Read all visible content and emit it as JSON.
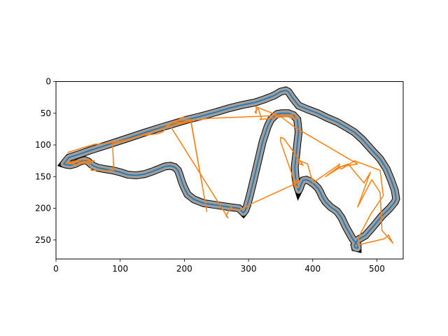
{
  "chart_data": {
    "type": "line",
    "title": "",
    "xlabel": "",
    "ylabel": "",
    "xlim": [
      0,
      541
    ],
    "ylim": [
      280,
      0
    ],
    "y_inverted": true,
    "grid": false,
    "legend": "none",
    "xticks": [
      0,
      100,
      200,
      300,
      400,
      500
    ],
    "yticks": [
      0,
      50,
      100,
      150,
      200,
      250
    ],
    "colors": {
      "boundary": "#1f77b4",
      "trajectory": "#ff7f0e",
      "fill": "#9e9e9e",
      "edge": "#000000"
    },
    "series": [
      {
        "role": "track-boundary",
        "color": "#1f77b4",
        "x": [
          12,
          20,
          38,
          55,
          80,
          110,
          140,
          165,
          185,
          205,
          225,
          250,
          270,
          290,
          310,
          325,
          340,
          350,
          358,
          362,
          368,
          378,
          392,
          408,
          422,
          438,
          452,
          465,
          478,
          492,
          505,
          515,
          522,
          528,
          530,
          528,
          520,
          508,
          495,
          482,
          470,
          465,
          466,
          470,
          470,
          462,
          452,
          445,
          438,
          428,
          420,
          415,
          412,
          408,
          402,
          395,
          390,
          385,
          382,
          380,
          378,
          375,
          373,
          372,
          374,
          376,
          378,
          376,
          370,
          362,
          352,
          345,
          340,
          335,
          330,
          322,
          315,
          308,
          302,
          298,
          295,
          292,
          290,
          285,
          270,
          250,
          230,
          215,
          205,
          200,
          196,
          193,
          190,
          185,
          178,
          170,
          160,
          150,
          138,
          125,
          112,
          100,
          88,
          75,
          65,
          58,
          54,
          50,
          45,
          38,
          30,
          22,
          15,
          12
        ],
        "y": [
          130,
          120,
          114,
          108,
          100,
          90,
          80,
          72,
          66,
          60,
          55,
          48,
          42,
          37,
          33,
          28,
          22,
          16,
          14,
          16,
          25,
          38,
          44,
          50,
          57,
          64,
          72,
          80,
          92,
          108,
          122,
          138,
          155,
          172,
          185,
          190,
          200,
          212,
          228,
          243,
          250,
          258,
          262,
          263,
          258,
          248,
          230,
          215,
          205,
          198,
          190,
          182,
          175,
          168,
          162,
          157,
          155,
          156,
          162,
          168,
          172,
          162,
          150,
          135,
          118,
          98,
          80,
          60,
          53,
          50,
          50,
          51,
          55,
          60,
          70,
          95,
          125,
          155,
          180,
          195,
          203,
          207,
          205,
          200,
          198,
          195,
          192,
          186,
          178,
          168,
          158,
          148,
          140,
          135,
          133,
          134,
          138,
          142,
          146,
          148,
          147,
          143,
          140,
          138,
          136,
          133,
          130,
          126,
          124,
          126,
          130,
          132,
          131,
          130
        ]
      },
      {
        "role": "trajectory",
        "color": "#ff7f0e",
        "x": [
          15,
          40,
          60,
          45,
          30,
          15,
          40,
          52,
          55,
          90,
          88,
          92,
          100,
          170,
          200,
          180,
          215,
          178,
          268,
          265,
          272,
          278,
          290,
          300,
          380,
          370,
          375,
          372,
          378,
          370,
          370,
          350,
          350,
          355,
          385,
          375,
          380,
          392,
          398,
          402,
          400,
          440,
          442,
          440,
          420,
          445,
          455,
          480,
          490,
          470,
          492,
          505,
          508,
          525,
          518,
          512,
          470,
          472,
          490,
          510,
          505,
          465,
          445,
          440,
          470,
          372,
          350,
          312,
          312,
          310,
          315,
          320,
          318,
          360,
          375,
          372,
          315,
          240,
          210,
          235,
          210,
          190,
          172,
          168,
          165,
          160,
          130,
          100,
          90,
          75,
          60,
          40,
          18
        ],
        "y": [
          128,
          127,
          125,
          129,
          131,
          128,
          124,
          123,
          140,
          140,
          95,
          97,
          96,
          72,
          55,
          66,
          62,
          70,
          215,
          212,
          198,
          203,
          202,
          195,
          158,
          155,
          156,
          165,
          168,
          160,
          153,
          95,
          88,
          90,
          132,
          128,
          125,
          130,
          152,
          155,
          160,
          132,
          130,
          135,
          150,
          134,
          130,
          160,
          143,
          198,
          155,
          175,
          235,
          255,
          242,
          248,
          258,
          245,
          210,
          180,
          140,
          125,
          138,
          135,
          130,
          72,
          55,
          40,
          50,
          48,
          42,
          58,
          60,
          55,
          60,
          52,
          55,
          58,
          62,
          205,
          60,
          62,
          70,
          78,
          80,
          82,
          86,
          94,
          96,
          98,
          99,
          105,
          112
        ]
      }
    ]
  }
}
